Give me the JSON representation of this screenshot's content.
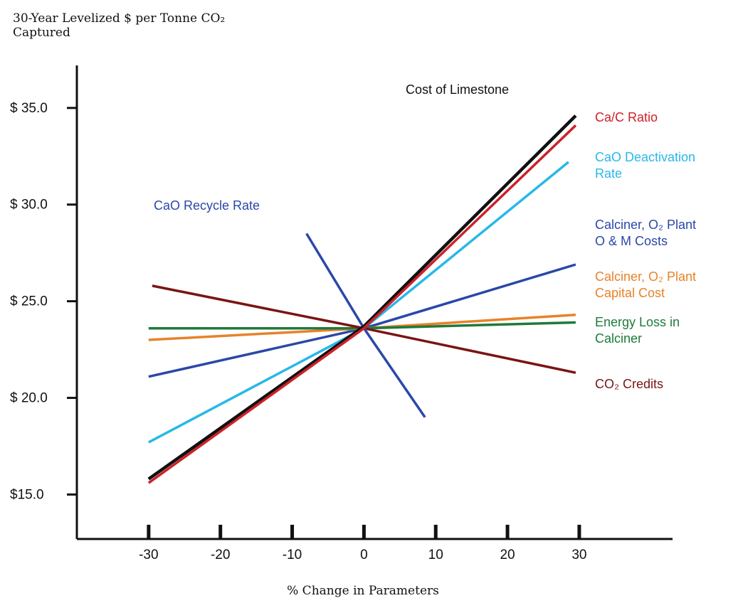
{
  "chart_data": {
    "type": "line",
    "title": "",
    "ylabel": [
      "30-Year Levelized $ per Tonne CO₂",
      "Captured"
    ],
    "xlabel": "% Change in Parameters",
    "xlim": [
      -40,
      43
    ],
    "ylim": [
      12.7,
      37.2
    ],
    "x_ticks": [
      -30,
      -20,
      -10,
      0,
      10,
      20,
      30
    ],
    "x_tick_labels": [
      "-30",
      "-20",
      "-10",
      "0",
      "10",
      "20",
      "30"
    ],
    "y_ticks": [
      15,
      20,
      25,
      30,
      35
    ],
    "y_tick_labels": [
      "$15.0",
      "$ 20.0",
      "$ 25.0",
      "$ 30.0",
      "$ 35.0"
    ],
    "grid": false,
    "legend": "none",
    "series": [
      {
        "name": "Cost of Limestone",
        "color": "#111111",
        "x": [
          -30,
          0,
          29.5
        ],
        "y": [
          15.8,
          23.7,
          34.6
        ],
        "label_lines": [
          "Cost of Limestone"
        ]
      },
      {
        "name": "Ca/C Ratio",
        "color": "#cc2229",
        "x": [
          -30,
          0,
          29.5
        ],
        "y": [
          15.6,
          23.6,
          34.1
        ],
        "label_lines": [
          "Ca/C Ratio"
        ]
      },
      {
        "name": "CaO Deactivation Rate",
        "color": "#29b8e8",
        "x": [
          -30,
          0,
          28.5
        ],
        "y": [
          17.7,
          23.6,
          32.2
        ],
        "label_lines": [
          "CaO Deactivation",
          "Rate"
        ]
      },
      {
        "name": "Calciner, O2 Plant O & M Costs",
        "color": "#2b48a8",
        "x": [
          -30,
          0,
          29.5
        ],
        "y": [
          21.1,
          23.6,
          26.9
        ],
        "label_lines": [
          "Calciner, O₂ Plant",
          "O & M Costs"
        ]
      },
      {
        "name": "Calciner, O2 Plant Capital Cost",
        "color": "#e8822a",
        "x": [
          -30,
          0,
          29.5
        ],
        "y": [
          23.0,
          23.6,
          24.3
        ],
        "label_lines": [
          "Calciner, O₂ Plant",
          "Capital Cost"
        ]
      },
      {
        "name": "Energy Loss in Calciner",
        "color": "#1e7a3a",
        "x": [
          -30,
          0,
          29.5
        ],
        "y": [
          23.6,
          23.6,
          23.9
        ],
        "label_lines": [
          "Energy Loss in",
          "Calciner"
        ]
      },
      {
        "name": "CO2 Credits",
        "color": "#7a1414",
        "x": [
          -29.5,
          0,
          29.5
        ],
        "y": [
          25.8,
          23.6,
          21.3
        ],
        "label_lines": [
          "CO₂ Credits"
        ]
      },
      {
        "name": "CaO Recycle Rate",
        "color": "#2b48a8",
        "x": [
          -8,
          0,
          8.5
        ],
        "y": [
          28.5,
          23.6,
          19.0
        ],
        "label_lines": [
          "CaO Recycle Rate"
        ]
      }
    ]
  }
}
